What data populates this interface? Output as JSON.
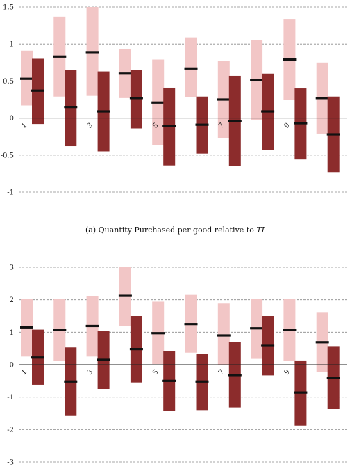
{
  "chart_data": [
    {
      "type": "range",
      "caption_prefix": "(a) Quantity Purchased per good relative to ",
      "caption_var": "TI",
      "ylim": [
        -1,
        1.5
      ],
      "yticks": [
        -1,
        -0.5,
        0,
        0.5,
        1,
        1.5
      ],
      "ytick_labels": [
        "-1",
        "-0.5",
        "0",
        "0.5",
        "1",
        "1.5"
      ],
      "xtick_labels": [
        {
          "position": 1,
          "label": "1"
        },
        {
          "position": 3,
          "label": "3"
        },
        {
          "position": 5,
          "label": "5"
        },
        {
          "position": 7,
          "label": "7"
        },
        {
          "position": 9,
          "label": "9"
        }
      ],
      "grid": true,
      "series": [
        {
          "color": "#f2c6c6",
          "values": [
            {
              "low": 0.17,
              "high": 0.91,
              "mid": 0.53
            },
            {
              "low": 0.29,
              "high": 1.37,
              "mid": 0.83
            },
            {
              "low": 0.3,
              "high": 1.5,
              "mid": 0.89
            },
            {
              "low": 0.27,
              "high": 0.93,
              "mid": 0.6
            },
            {
              "low": -0.37,
              "high": 0.79,
              "mid": 0.21
            },
            {
              "low": 0.28,
              "high": 1.09,
              "mid": 0.67
            },
            {
              "low": -0.27,
              "high": 0.77,
              "mid": 0.25
            },
            {
              "low": -0.03,
              "high": 1.05,
              "mid": 0.51
            },
            {
              "low": 0.25,
              "high": 1.33,
              "mid": 0.79
            },
            {
              "low": -0.21,
              "high": 0.75,
              "mid": 0.27
            }
          ]
        },
        {
          "color": "#8c2c2c",
          "values": [
            {
              "low": -0.08,
              "high": 0.8,
              "mid": 0.37
            },
            {
              "low": -0.38,
              "high": 0.65,
              "mid": 0.15
            },
            {
              "low": -0.45,
              "high": 0.63,
              "mid": 0.09
            },
            {
              "low": -0.14,
              "high": 0.65,
              "mid": 0.27
            },
            {
              "low": -0.64,
              "high": 0.41,
              "mid": -0.11
            },
            {
              "low": -0.48,
              "high": 0.29,
              "mid": -0.09
            },
            {
              "low": -0.65,
              "high": 0.57,
              "mid": -0.04
            },
            {
              "low": -0.43,
              "high": 0.6,
              "mid": 0.09
            },
            {
              "low": -0.56,
              "high": 0.4,
              "mid": -0.07
            },
            {
              "low": -0.73,
              "high": 0.29,
              "mid": -0.22
            }
          ]
        }
      ]
    },
    {
      "type": "range",
      "ylim": [
        -3,
        3
      ],
      "yticks": [
        -3,
        -2,
        -1,
        0,
        1,
        2,
        3
      ],
      "ytick_labels": [
        "-3",
        "-2",
        "-1",
        "0",
        "1",
        "2",
        "3"
      ],
      "xtick_labels": [
        {
          "position": 1,
          "label": "1"
        },
        {
          "position": 3,
          "label": "3"
        },
        {
          "position": 5,
          "label": "5"
        },
        {
          "position": 7,
          "label": "7"
        },
        {
          "position": 9,
          "label": "9"
        }
      ],
      "grid": true,
      "series": [
        {
          "color": "#f2c6c6",
          "values": [
            {
              "low": 0.25,
              "high": 2.03,
              "mid": 1.15
            },
            {
              "low": 0.12,
              "high": 2.02,
              "mid": 1.07
            },
            {
              "low": 0.25,
              "high": 2.1,
              "mid": 1.19
            },
            {
              "low": 1.18,
              "high": 3.0,
              "mid": 2.12
            },
            {
              "low": 0.02,
              "high": 1.94,
              "mid": 0.97
            },
            {
              "low": 0.37,
              "high": 2.15,
              "mid": 1.25
            },
            {
              "low": 0.0,
              "high": 1.88,
              "mid": 0.9
            },
            {
              "low": 0.18,
              "high": 2.03,
              "mid": 1.12
            },
            {
              "low": 0.12,
              "high": 2.02,
              "mid": 1.07
            },
            {
              "low": -0.22,
              "high": 1.6,
              "mid": 0.69
            }
          ]
        },
        {
          "color": "#8c2c2c",
          "values": [
            {
              "low": -0.62,
              "high": 1.08,
              "mid": 0.22
            },
            {
              "low": -1.58,
              "high": 0.53,
              "mid": -0.52
            },
            {
              "low": -0.75,
              "high": 1.05,
              "mid": 0.15
            },
            {
              "low": -0.55,
              "high": 1.5,
              "mid": 0.48
            },
            {
              "low": -1.42,
              "high": 0.42,
              "mid": -0.5
            },
            {
              "low": -1.4,
              "high": 0.33,
              "mid": -0.52
            },
            {
              "low": -1.32,
              "high": 0.7,
              "mid": -0.32
            },
            {
              "low": -0.33,
              "high": 1.5,
              "mid": 0.6
            },
            {
              "low": -1.88,
              "high": 0.13,
              "mid": -0.86
            },
            {
              "low": -1.35,
              "high": 0.57,
              "mid": -0.4
            }
          ]
        }
      ]
    }
  ]
}
